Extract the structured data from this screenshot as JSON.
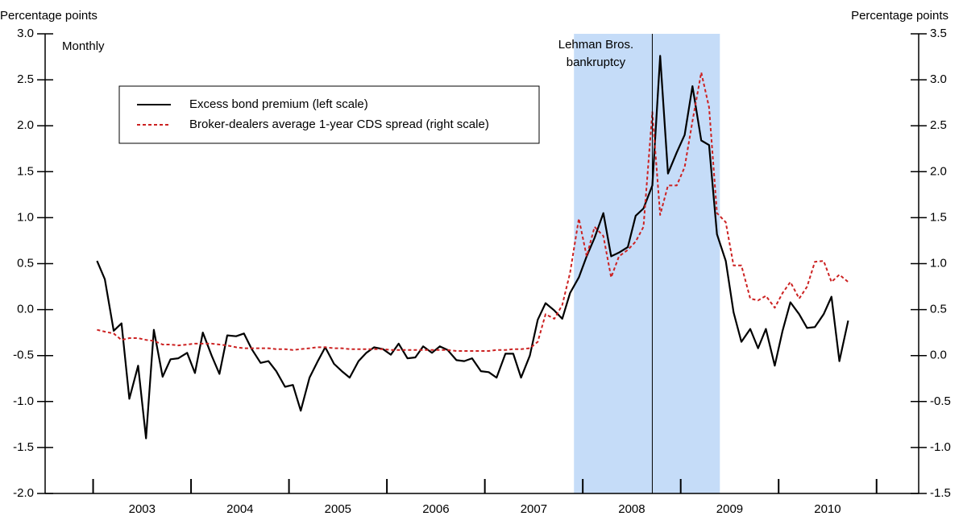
{
  "chart_data": {
    "type": "line",
    "y_label": "Percentage points",
    "y2_label": "Percentage points",
    "subtitle": "Monthly",
    "annotation": {
      "lines": [
        "Lehman Bros.",
        "bankruptcy"
      ],
      "x": 2008.71
    },
    "shaded_region": [
      2007.91,
      2009.4
    ],
    "x": [
      2003.04,
      2003.12,
      2003.21,
      2003.29,
      2003.37,
      2003.46,
      2003.54,
      2003.62,
      2003.71,
      2003.79,
      2003.87,
      2003.96,
      2004.04,
      2004.12,
      2004.21,
      2004.29,
      2004.37,
      2004.46,
      2004.54,
      2004.62,
      2004.71,
      2004.79,
      2004.87,
      2004.96,
      2005.04,
      2005.12,
      2005.21,
      2005.29,
      2005.37,
      2005.46,
      2005.54,
      2005.62,
      2005.71,
      2005.79,
      2005.87,
      2005.96,
      2006.04,
      2006.12,
      2006.21,
      2006.29,
      2006.37,
      2006.46,
      2006.54,
      2006.62,
      2006.71,
      2006.79,
      2006.87,
      2006.96,
      2007.04,
      2007.12,
      2007.21,
      2007.29,
      2007.37,
      2007.46,
      2007.54,
      2007.62,
      2007.71,
      2007.79,
      2007.87,
      2007.96,
      2008.04,
      2008.12,
      2008.21,
      2008.29,
      2008.37,
      2008.46,
      2008.54,
      2008.62,
      2008.71,
      2008.79,
      2008.87,
      2008.96,
      2009.04,
      2009.12,
      2009.21,
      2009.29,
      2009.37,
      2009.46,
      2009.54,
      2009.62,
      2009.71,
      2009.79,
      2009.87,
      2009.96,
      2010.04,
      2010.12,
      2010.21,
      2010.29,
      2010.37,
      2010.46,
      2010.54,
      2010.62,
      2010.71
    ],
    "series": [
      {
        "name": "Excess bond premium (left scale)",
        "color": "#000000",
        "dash": false,
        "axis": "y",
        "values": [
          0.53,
          0.33,
          -0.23,
          -0.15,
          -0.97,
          -0.61,
          -1.4,
          -0.22,
          -0.73,
          -0.54,
          -0.53,
          -0.47,
          -0.69,
          -0.25,
          -0.5,
          -0.7,
          -0.28,
          -0.29,
          -0.26,
          -0.43,
          -0.58,
          -0.56,
          -0.67,
          -0.84,
          -0.82,
          -1.1,
          -0.74,
          -0.57,
          -0.41,
          -0.59,
          -0.67,
          -0.74,
          -0.56,
          -0.47,
          -0.41,
          -0.43,
          -0.49,
          -0.37,
          -0.53,
          -0.52,
          -0.4,
          -0.47,
          -0.4,
          -0.44,
          -0.55,
          -0.56,
          -0.53,
          -0.67,
          -0.68,
          -0.74,
          -0.48,
          -0.48,
          -0.74,
          -0.5,
          -0.11,
          0.07,
          -0.01,
          -0.1,
          0.18,
          0.35,
          0.58,
          0.78,
          1.05,
          0.58,
          0.62,
          0.68,
          1.02,
          1.1,
          1.35,
          2.76,
          1.48,
          1.71,
          1.9,
          2.43,
          1.84,
          1.79,
          0.82,
          0.53,
          -0.03,
          -0.35,
          -0.21,
          -0.42,
          -0.21,
          -0.61,
          -0.23,
          0.08,
          -0.05,
          -0.2,
          -0.19,
          -0.05,
          0.14,
          -0.56,
          -0.12
        ]
      },
      {
        "name": "Broker-dealers average 1-year CDS spread (right scale)",
        "color": "#cc2222",
        "dash": true,
        "axis": "y2",
        "values": [
          0.28,
          0.26,
          0.24,
          0.17,
          0.19,
          0.19,
          0.17,
          0.16,
          0.12,
          0.12,
          0.11,
          0.12,
          0.13,
          0.13,
          0.13,
          0.12,
          0.11,
          0.09,
          0.08,
          0.08,
          0.08,
          0.08,
          0.07,
          0.07,
          0.06,
          0.07,
          0.08,
          0.09,
          0.09,
          0.08,
          0.08,
          0.07,
          0.07,
          0.07,
          0.07,
          0.07,
          0.06,
          0.06,
          0.06,
          0.06,
          0.06,
          0.06,
          0.06,
          0.06,
          0.05,
          0.05,
          0.05,
          0.05,
          0.05,
          0.06,
          0.06,
          0.07,
          0.07,
          0.08,
          0.15,
          0.45,
          0.4,
          0.55,
          0.9,
          1.49,
          1.08,
          1.4,
          1.3,
          0.85,
          1.08,
          1.15,
          1.24,
          1.4,
          2.65,
          1.53,
          1.85,
          1.85,
          2.05,
          2.55,
          3.08,
          2.7,
          1.55,
          1.45,
          0.98,
          0.98,
          0.62,
          0.6,
          0.65,
          0.52,
          0.68,
          0.8,
          0.62,
          0.75,
          1.02,
          1.03,
          0.8,
          0.88,
          0.8
        ]
      }
    ],
    "xlim": [
      2002.51,
      2011.43
    ],
    "xticks": [
      2003,
      2004,
      2005,
      2006,
      2007,
      2008,
      2009,
      2010,
      2011
    ],
    "ylim": [
      -2.0,
      3.0
    ],
    "yticks": [
      {
        "value": 3.0,
        "label": "3.0"
      },
      2.5,
      {
        "value": 2.0,
        "label": "2.0"
      },
      1.5,
      {
        "value": 1.0,
        "label": "1.0"
      },
      0.5,
      {
        "value": 0.0,
        "label": "0.0"
      },
      -0.5,
      {
        "value": -1.0,
        "label": "-1.0"
      },
      -1.5,
      {
        "value": -2.0,
        "label": "-2.0"
      }
    ],
    "y2lim": [
      -1.5,
      3.5
    ],
    "y2ticks": [
      3.5,
      {
        "value": 3.0,
        "label": "3.0"
      },
      2.5,
      {
        "value": 2.0,
        "label": "2.0"
      },
      1.5,
      {
        "value": 1.0,
        "label": "1.0"
      },
      0.5,
      {
        "value": 0.0,
        "label": "0.0"
      },
      -0.5,
      {
        "value": -1.0,
        "label": "-1.0"
      },
      -1.5
    ]
  }
}
